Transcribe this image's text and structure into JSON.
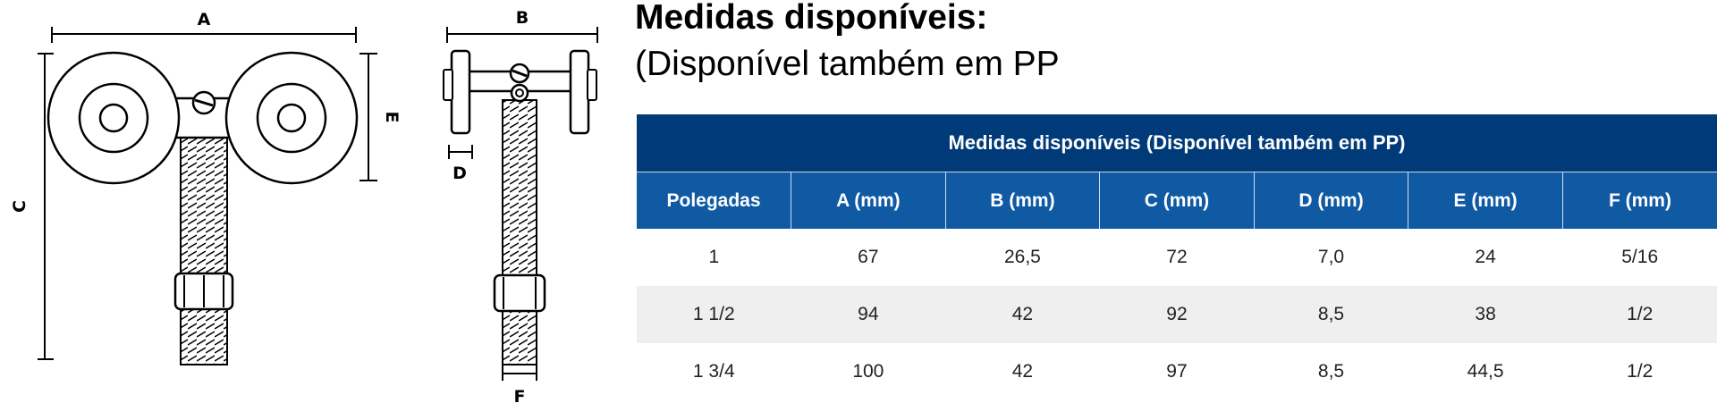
{
  "drawing": {
    "dimension_labels": {
      "a": "A",
      "b": "B",
      "c": "C",
      "d": "D",
      "e": "E",
      "f": "F"
    }
  },
  "heading": {
    "title": "Medidas disponíveis:",
    "subtitle": "(Disponível também em PP"
  },
  "table": {
    "caption": "Medidas disponíveis (Disponível também em PP)",
    "columns": [
      "Polegadas",
      "A (mm)",
      "B (mm)",
      "C (mm)",
      "D (mm)",
      "E (mm)",
      "F (mm)"
    ],
    "rows": [
      [
        "1",
        "67",
        "26,5",
        "72",
        "7,0",
        "24",
        "5/16"
      ],
      [
        "1 1/2",
        "94",
        "42",
        "92",
        "8,5",
        "38",
        "1/2"
      ],
      [
        "1 3/4",
        "100",
        "42",
        "97",
        "8,5",
        "44,5",
        "1/2"
      ]
    ]
  },
  "colors": {
    "caption_bg": "#003a79",
    "header_bg": "#0f5aa3",
    "row_alt_bg": "#efefef"
  }
}
